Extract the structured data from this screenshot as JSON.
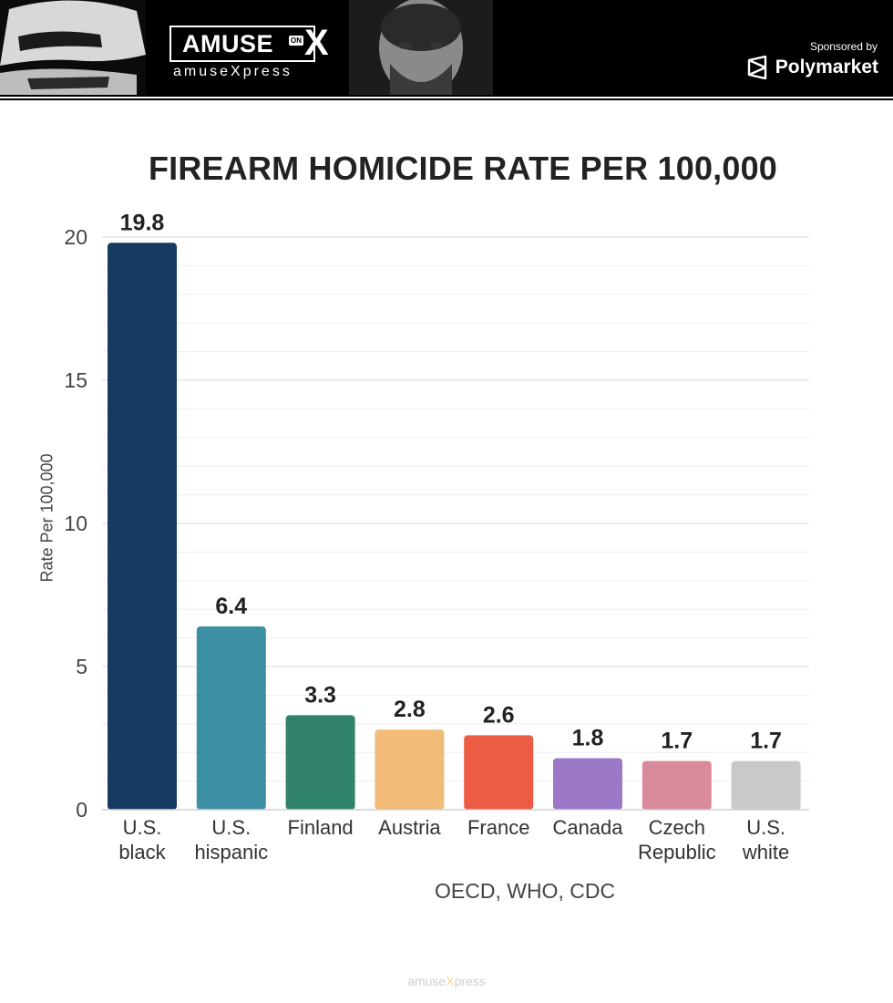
{
  "header": {
    "logo_main": "AMUSE",
    "logo_on": "ON",
    "logo_x": "X",
    "logo_sub": "amuseXpress",
    "sponsor_label": "Sponsored by",
    "sponsor_name": "Polymarket"
  },
  "footer": {
    "watermark_a": "amuse",
    "watermark_x": "X",
    "watermark_b": "press"
  },
  "chart_data": {
    "type": "bar",
    "title": "FIREARM HOMICIDE RATE PER 100,000",
    "ylabel": "Rate Per 100,000",
    "xlabel": "",
    "source": "OECD, WHO, CDC",
    "ylim": [
      0,
      20
    ],
    "yticks": [
      0,
      5,
      10,
      15,
      20
    ],
    "grid": true,
    "categories": [
      [
        "U.S.",
        "black"
      ],
      [
        "U.S.",
        "hispanic"
      ],
      [
        "Finland"
      ],
      [
        "Austria"
      ],
      [
        "France"
      ],
      [
        "Canada"
      ],
      [
        "Czech",
        "Republic"
      ],
      [
        "U.S.",
        "white"
      ]
    ],
    "values": [
      19.8,
      6.4,
      3.3,
      2.8,
      2.6,
      1.8,
      1.7,
      1.7
    ],
    "value_labels": [
      "19.8",
      "6.4",
      "3.3",
      "2.8",
      "2.6",
      "1.8",
      "1.7",
      "1.7"
    ],
    "colors": [
      "#173a62",
      "#3d8fa4",
      "#31826a",
      "#f2bc78",
      "#ec5b44",
      "#9b78c8",
      "#d98a9d",
      "#c9c9c9"
    ]
  }
}
